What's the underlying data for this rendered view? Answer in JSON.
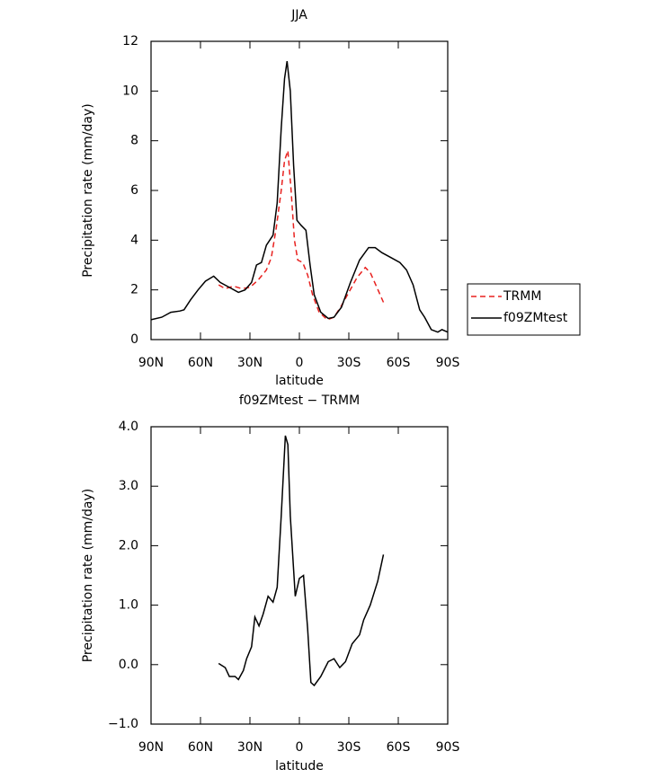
{
  "chart_data": [
    {
      "type": "line",
      "title": "JJA",
      "xlabel": "latitude",
      "ylabel": "Precipitation rate (mm/day)",
      "xlim": [
        90,
        -90
      ],
      "xticks": [
        {
          "value": 90,
          "label": "90N"
        },
        {
          "value": 60,
          "label": "60N"
        },
        {
          "value": 30,
          "label": "30N"
        },
        0,
        {
          "value": -30,
          "label": "30S"
        },
        {
          "value": -60,
          "label": "60S"
        },
        {
          "value": -90,
          "label": "90S"
        }
      ],
      "ylim": [
        0,
        12
      ],
      "yticks": [
        0,
        2,
        4,
        6,
        8,
        10,
        12
      ],
      "legend": "right",
      "series": [
        {
          "name": "TRMM",
          "color": "#e8211f",
          "linestyle": "dashed",
          "x": [
            49,
            45,
            40,
            35,
            30,
            25,
            20,
            17,
            14,
            11,
            9,
            7,
            5,
            3,
            1,
            -2,
            -5,
            -8,
            -12,
            -17,
            -21,
            -25,
            -30,
            -35,
            -40,
            -43,
            -47,
            -51
          ],
          "values": [
            2.2,
            2.05,
            2.15,
            2.05,
            2.1,
            2.4,
            2.8,
            3.3,
            4.5,
            6.0,
            7.2,
            7.6,
            6.0,
            4.0,
            3.2,
            3.1,
            2.6,
            1.8,
            1.1,
            0.8,
            0.9,
            1.3,
            1.9,
            2.5,
            2.9,
            2.7,
            2.1,
            1.5
          ]
        },
        {
          "name": "f09ZMtest",
          "color": "#000000",
          "linestyle": "solid",
          "x": [
            90,
            83.5,
            78,
            72.5,
            70,
            66,
            61.5,
            57,
            52,
            48,
            42.5,
            37,
            33,
            29,
            26,
            23,
            20,
            16,
            13.5,
            11,
            9,
            7.5,
            5.5,
            3.5,
            1.5,
            -1,
            -4,
            -6.5,
            -9,
            -13,
            -17.5,
            -21,
            -25.5,
            -31,
            -36.5,
            -42,
            -46,
            -50,
            -55.5,
            -61,
            -65,
            -69,
            -73,
            -76,
            -80,
            -84,
            -86.5,
            -90
          ],
          "values": [
            0.8,
            0.9,
            1.1,
            1.15,
            1.2,
            1.6,
            2.0,
            2.35,
            2.55,
            2.3,
            2.1,
            1.9,
            2.0,
            2.3,
            3.0,
            3.1,
            3.8,
            4.2,
            5.5,
            8.5,
            10.5,
            11.2,
            10.0,
            7.0,
            4.8,
            4.6,
            4.4,
            3.0,
            1.8,
            1.1,
            0.85,
            0.9,
            1.3,
            2.3,
            3.2,
            3.7,
            3.7,
            3.5,
            3.3,
            3.1,
            2.8,
            2.2,
            1.2,
            0.9,
            0.4,
            0.3,
            0.4,
            0.3
          ]
        }
      ]
    },
    {
      "type": "line",
      "title": "f09ZMtest − TRMM",
      "xlabel": "latitude",
      "ylabel": "Precipitation rate (mm/day)",
      "xlim": [
        90,
        -90
      ],
      "xticks": [
        {
          "value": 90,
          "label": "90N"
        },
        {
          "value": 60,
          "label": "60N"
        },
        {
          "value": 30,
          "label": "30N"
        },
        0,
        {
          "value": -30,
          "label": "30S"
        },
        {
          "value": -60,
          "label": "60S"
        },
        {
          "value": -90,
          "label": "90S"
        }
      ],
      "ylim": [
        -1,
        4
      ],
      "yticks": [
        {
          "value": -1,
          "label": "−1.0"
        },
        {
          "value": 0,
          "label": "0.0"
        },
        {
          "value": 1,
          "label": "1.0"
        },
        {
          "value": 2,
          "label": "2.0"
        },
        {
          "value": 3,
          "label": "3.0"
        },
        {
          "value": 4,
          "label": "4.0"
        }
      ],
      "series": [
        {
          "color": "#000000",
          "linestyle": "solid",
          "x": [
            49,
            45,
            42.5,
            39,
            37,
            34,
            32,
            29,
            27,
            24.5,
            22,
            19,
            16,
            13.5,
            11,
            8.5,
            7,
            5.5,
            2.5,
            0,
            -2.5,
            -5,
            -7,
            -9,
            -13,
            -17.5,
            -21,
            -24.5,
            -28,
            -32,
            -36.5,
            -39,
            -43,
            -47.5,
            -51
          ],
          "values": [
            0.02,
            -0.05,
            -0.2,
            -0.2,
            -0.25,
            -0.1,
            0.1,
            0.3,
            0.8,
            0.65,
            0.85,
            1.15,
            1.05,
            1.3,
            2.5,
            3.85,
            3.7,
            2.5,
            1.15,
            1.45,
            1.5,
            0.6,
            -0.3,
            -0.35,
            -0.2,
            0.05,
            0.1,
            -0.05,
            0.05,
            0.35,
            0.5,
            0.75,
            1.0,
            1.4,
            1.85
          ]
        }
      ]
    }
  ]
}
